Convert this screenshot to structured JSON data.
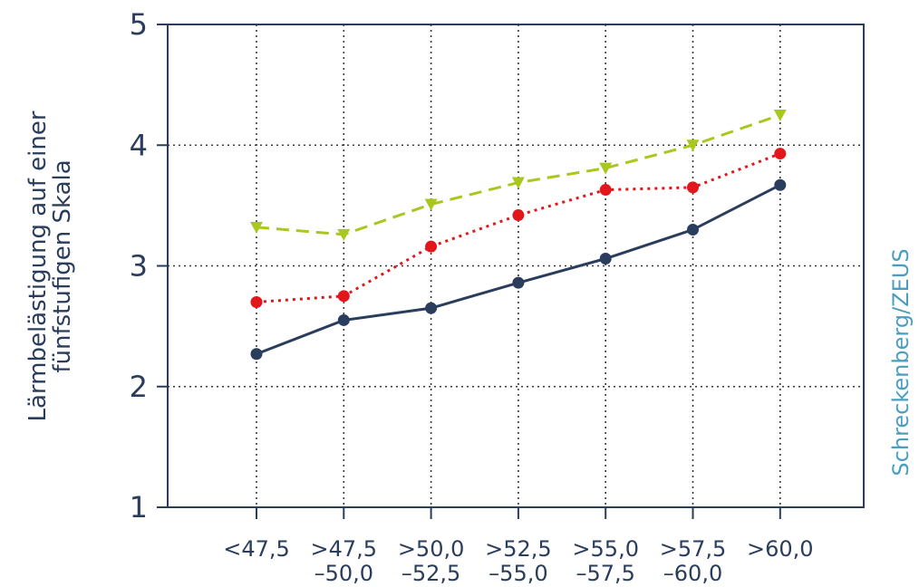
{
  "chart_data": {
    "type": "line",
    "title": "",
    "xlabel": "",
    "ylabel": [
      "Lärmbelästigung auf einer",
      "fünfstufigen Skala"
    ],
    "credit": "Schreckenberg/ZEUS",
    "categories": [
      [
        "<47,5"
      ],
      [
        ">47,5",
        "–50,0"
      ],
      [
        ">50,0",
        "–52,5"
      ],
      [
        ">52,5",
        "–55,0"
      ],
      [
        ">55,0",
        "–57,5"
      ],
      [
        ">57,5",
        "–60,0"
      ],
      [
        ">60,0"
      ]
    ],
    "yticks": [
      "1",
      "2",
      "3",
      "4",
      "5"
    ],
    "ylim": [
      1,
      5
    ],
    "grid": true,
    "series": [
      {
        "values": [
          3.32,
          3.26,
          3.51,
          3.69,
          3.81,
          4.0,
          4.25
        ],
        "color": "#a8c81e",
        "style": "dashed",
        "marker": "triangle-down"
      },
      {
        "values": [
          2.7,
          2.75,
          3.16,
          3.42,
          3.63,
          3.65,
          3.93
        ],
        "color": "#e3161b",
        "style": "dotted",
        "marker": "circle"
      },
      {
        "values": [
          2.27,
          2.55,
          2.65,
          2.86,
          3.06,
          3.3,
          3.67
        ],
        "color": "#2a3d5c",
        "style": "solid",
        "marker": "circle"
      }
    ]
  }
}
